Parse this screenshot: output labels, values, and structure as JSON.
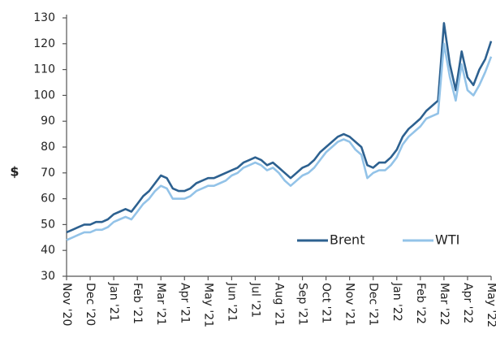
{
  "chart_data": {
    "type": "line",
    "ylabel": "$",
    "categories": [
      "Nov '20",
      null,
      null,
      null,
      "Dec '20",
      null,
      null,
      null,
      "Jan '21",
      null,
      null,
      null,
      "Feb '21",
      null,
      null,
      null,
      "Mar '21",
      null,
      null,
      null,
      "Apr '21",
      null,
      null,
      null,
      "May '21",
      null,
      null,
      null,
      "Jun '21",
      null,
      null,
      null,
      "Jul '21",
      null,
      null,
      null,
      "Aug '21",
      null,
      null,
      null,
      "Sep '21",
      null,
      null,
      null,
      "Oct '21",
      null,
      null,
      null,
      "Nov '21",
      null,
      null,
      null,
      "Dec '21",
      null,
      null,
      null,
      "Jan '22",
      null,
      null,
      null,
      "Feb '22",
      null,
      null,
      null,
      "Mar '22",
      null,
      null,
      null,
      "Apr '22",
      null,
      null,
      null,
      "May '22"
    ],
    "series": [
      {
        "name": "Brent",
        "color": "#2d6190",
        "values": [
          47,
          48,
          49,
          50,
          50,
          51,
          51,
          52,
          54,
          55,
          56,
          55,
          58,
          61,
          63,
          66,
          69,
          68,
          64,
          63,
          63,
          64,
          66,
          67,
          68,
          68,
          69,
          70,
          71,
          72,
          74,
          75,
          76,
          75,
          73,
          74,
          72,
          70,
          68,
          70,
          72,
          73,
          75,
          78,
          80,
          82,
          84,
          85,
          84,
          82,
          80,
          73,
          72,
          74,
          74,
          76,
          79,
          84,
          87,
          89,
          91,
          94,
          96,
          98,
          128,
          112,
          102,
          117,
          107,
          104,
          110,
          114,
          121
        ]
      },
      {
        "name": "WTI",
        "color": "#93c3e8",
        "values": [
          44,
          45,
          46,
          47,
          47,
          48,
          48,
          49,
          51,
          52,
          53,
          52,
          55,
          58,
          60,
          63,
          65,
          64,
          60,
          60,
          60,
          61,
          63,
          64,
          65,
          65,
          66,
          67,
          69,
          70,
          72,
          73,
          74,
          73,
          71,
          72,
          70,
          67,
          65,
          67,
          69,
          70,
          72,
          75,
          78,
          80,
          82,
          83,
          82,
          79,
          77,
          68,
          70,
          71,
          71,
          73,
          76,
          81,
          84,
          86,
          88,
          91,
          92,
          93,
          120,
          107,
          98,
          112,
          102,
          100,
          104,
          109,
          115
        ]
      }
    ],
    "ylim": [
      30,
      130
    ],
    "yticks": [
      30,
      40,
      50,
      60,
      70,
      80,
      90,
      100,
      110,
      120,
      130
    ],
    "grid": false,
    "legend": "lower right"
  }
}
